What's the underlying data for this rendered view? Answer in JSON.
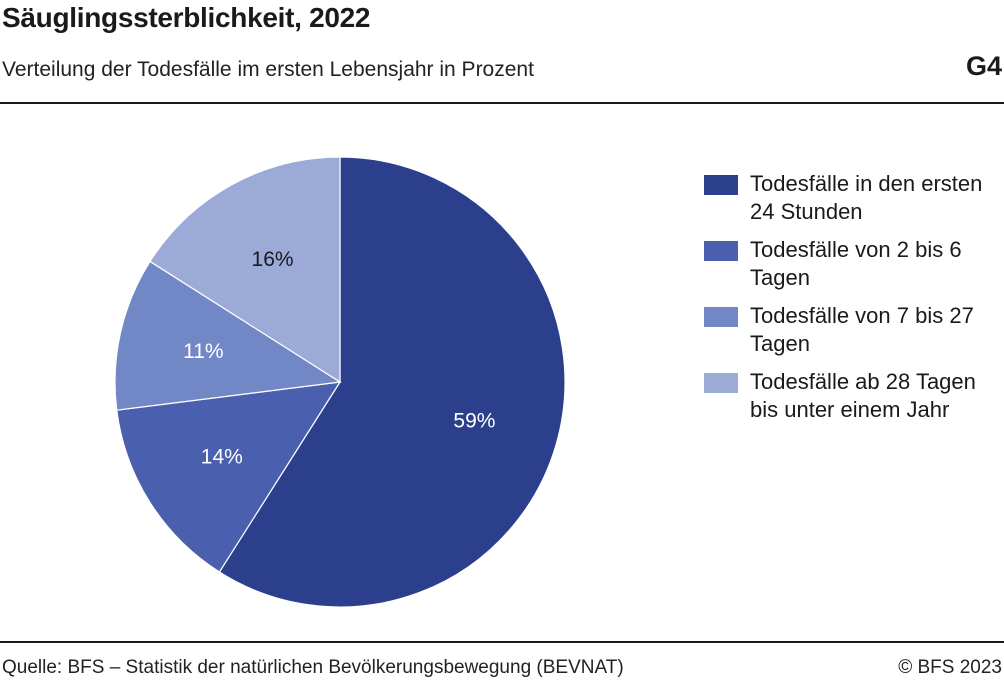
{
  "header": {
    "title": "Säuglingssterblichkeit, 2022",
    "subtitle": "Verteilung der Todesfälle im ersten Lebensjahr in Prozent",
    "figure_id": "G4"
  },
  "footer": {
    "source": "Quelle: BFS – Statistik der natürlichen Bevölkerungsbewegung (BEVNAT)",
    "copyright": "© BFS 2023"
  },
  "chart_data": {
    "type": "pie",
    "categories": [
      "Todesfälle in den ersten 24 Stunden",
      "Todesfälle von 2 bis 6 Tagen",
      "Todesfälle von 7 bis 27 Tagen",
      "Todesfälle ab 28 Tagen bis unter einem Jahr"
    ],
    "values": [
      59,
      14,
      11,
      16
    ],
    "labels": [
      "59%",
      "14%",
      "11%",
      "16%"
    ],
    "colors": [
      "#2b3f8c",
      "#4a5fae",
      "#7287c6",
      "#9caad8"
    ],
    "label_colors": [
      "#ffffff",
      "#ffffff",
      "#ffffff",
      "#1a1a1a"
    ],
    "start_angle": "12 o'clock",
    "direction": "clockwise",
    "legend_position": "right"
  },
  "legend": {
    "items": [
      {
        "label": "Todesfälle in den ersten 24 Stunden",
        "color": "#2b3f8c"
      },
      {
        "label": "Todesfälle von 2 bis 6 Tagen",
        "color": "#4a5fae"
      },
      {
        "label": "Todesfälle von 7 bis 27 Tagen",
        "color": "#7287c6"
      },
      {
        "label": "Todesfälle ab 28 Tagen bis unter einem Jahr",
        "color": "#9caad8"
      }
    ]
  }
}
